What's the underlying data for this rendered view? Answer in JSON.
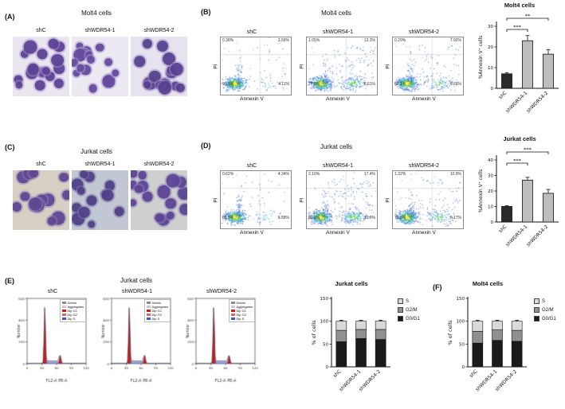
{
  "panelA": {
    "label": "(A)",
    "title": "Molt4 cells",
    "images": [
      {
        "label": "shC"
      },
      {
        "label": "shWDR54-1"
      },
      {
        "label": "shWDR54-2"
      }
    ]
  },
  "panelB": {
    "label": "(B)",
    "title": "Molt4 cells",
    "xlabel": "Annexin V",
    "ylabel": "PI",
    "plots": [
      {
        "title": "shC",
        "q": [
          "0.38%",
          "3.59%",
          "91.9%",
          "4.11%"
        ]
      },
      {
        "title": "shWDR54-1",
        "q": [
          "1.05%",
          "13.3%",
          "77.0%",
          "8.61%"
        ]
      },
      {
        "title": "shWDR54-2",
        "q": [
          "0.29%",
          "7.92%",
          "82.1%",
          "9.65%"
        ]
      }
    ]
  },
  "panelC": {
    "label": "(C)",
    "title": "Jurkat cells",
    "images": [
      {
        "label": "shC"
      },
      {
        "label": "shWDR54-1"
      },
      {
        "label": "shWDR54-2"
      }
    ]
  },
  "panelD": {
    "label": "(D)",
    "title": "Jurkat cells",
    "xlabel": "Annexin V",
    "ylabel": "PI",
    "plots": [
      {
        "title": "shC",
        "q": [
          "0.62%",
          "4.34%",
          "89.5%",
          "5.58%"
        ]
      },
      {
        "title": "shWDR54-1",
        "q": [
          "2.10%",
          "17.4%",
          "69.5%",
          "11.0%"
        ]
      },
      {
        "title": "shWDR54-2",
        "q": [
          "1.32%",
          "10.0%",
          "79.5%",
          "9.17%"
        ]
      }
    ]
  },
  "panelE": {
    "label": "(E)",
    "title": "Jurkat cells",
    "plots": [
      {
        "title": "shC"
      },
      {
        "title": "shWDR54-1"
      },
      {
        "title": "shWDR54-2"
      }
    ],
    "hist_xlabel": "FL2-A PE-A",
    "hist_ylabel": "Number",
    "hist_xticks": [
      "0",
      "30",
      "60",
      "90",
      "120"
    ],
    "hist_yticks": [
      "0",
      "200",
      "400",
      "600"
    ],
    "legend": [
      {
        "label": "Debris",
        "color": "#8a8a8a"
      },
      {
        "label": "Aggregates",
        "color": "#c9c9c9"
      },
      {
        "label": "Dip G1",
        "color": "#c21f1f"
      },
      {
        "label": "Dip G2",
        "color": "#e06666"
      },
      {
        "label": "Dip S",
        "color": "#3a5bc7"
      }
    ]
  },
  "panelF": {
    "label": "(F)"
  },
  "chart_data": [
    {
      "id": "annexin-molt4",
      "type": "bar",
      "title": "Molt4 cells",
      "ylabel": "%Annexin V⁺ cells",
      "categories": [
        "shC",
        "shWDR54-1",
        "shWDR54-2"
      ],
      "values": [
        7,
        23,
        16.5
      ],
      "errors": [
        0.6,
        2.5,
        2.2
      ],
      "ylim": [
        0,
        30
      ],
      "yticks": [
        0,
        10,
        20,
        30
      ],
      "bar_colors": [
        "#2b2b2b",
        "#bdbdbd",
        "#bdbdbd"
      ],
      "significance": [
        {
          "from": 0,
          "to": 1,
          "label": "***"
        },
        {
          "from": 0,
          "to": 2,
          "label": "**"
        }
      ]
    },
    {
      "id": "annexin-jurkat",
      "type": "bar",
      "title": "Jurkat cells",
      "ylabel": "%Annexin V⁺ cells",
      "categories": [
        "shC",
        "shWDR54-1",
        "shWDR54-2"
      ],
      "values": [
        10,
        27,
        18.5
      ],
      "errors": [
        0.5,
        1.8,
        2.5
      ],
      "ylim": [
        0,
        40
      ],
      "yticks": [
        0,
        10,
        20,
        30,
        40
      ],
      "bar_colors": [
        "#2b2b2b",
        "#bdbdbd",
        "#bdbdbd"
      ],
      "significance": [
        {
          "from": 0,
          "to": 1,
          "label": "***"
        },
        {
          "from": 0,
          "to": 2,
          "label": "***"
        }
      ]
    },
    {
      "id": "cycle-jurkat",
      "type": "stacked-bar",
      "title": "Jurkat cells",
      "ylabel": "% of cells",
      "categories": [
        "shC",
        "shWDR54-1",
        "shWDR54-2"
      ],
      "series": [
        {
          "name": "G0/G1",
          "color": "#1a1a1a",
          "values": [
            55,
            62,
            60
          ]
        },
        {
          "name": "G2/M",
          "color": "#909090",
          "values": [
            25,
            20,
            22
          ]
        },
        {
          "name": "S",
          "color": "#d9d9d9",
          "values": [
            20,
            18,
            18
          ]
        }
      ],
      "errors": [
        2,
        2,
        2
      ],
      "ylim": [
        0,
        150
      ],
      "yticks": [
        0,
        50,
        100,
        150
      ],
      "legend_order": [
        "S",
        "G2/M",
        "G0/G1"
      ]
    },
    {
      "id": "cycle-molt4",
      "type": "stacked-bar",
      "title": "Molt4 cells",
      "ylabel": "% of cells",
      "categories": [
        "shC",
        "shWDR54-1",
        "shWDR54-2"
      ],
      "series": [
        {
          "name": "G0/G1",
          "color": "#1a1a1a",
          "values": [
            52,
            58,
            56
          ]
        },
        {
          "name": "G2/M",
          "color": "#909090",
          "values": [
            26,
            23,
            24
          ]
        },
        {
          "name": "S",
          "color": "#d9d9d9",
          "values": [
            22,
            19,
            20
          ]
        }
      ],
      "errors": [
        2,
        2,
        2
      ],
      "ylim": [
        0,
        150
      ],
      "yticks": [
        0,
        50,
        100,
        150
      ],
      "legend_order": [
        "S",
        "G2/M",
        "G0/G1"
      ]
    }
  ]
}
